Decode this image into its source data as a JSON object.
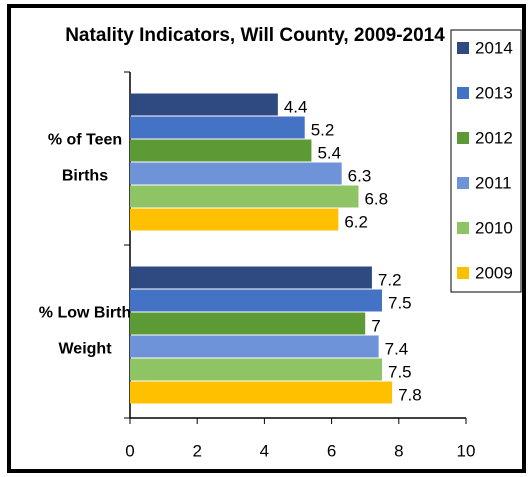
{
  "chart_data": {
    "type": "barh",
    "title": "Natality Indicators, Will County, 2009-2014",
    "categories": [
      "% of Teen Births",
      "% Low Birth Weight"
    ],
    "series": [
      {
        "name": "2014",
        "color": "#2f4a80",
        "values": [
          4.4,
          7.2
        ]
      },
      {
        "name": "2013",
        "color": "#4472c4",
        "values": [
          5.2,
          7.5
        ]
      },
      {
        "name": "2012",
        "color": "#5b9a34",
        "values": [
          5.4,
          7
        ]
      },
      {
        "name": "2011",
        "color": "#6f93d8",
        "values": [
          6.3,
          7.4
        ]
      },
      {
        "name": "2010",
        "color": "#8fc465",
        "values": [
          6.8,
          7.5
        ]
      },
      {
        "name": "2009",
        "color": "#ffc000",
        "values": [
          6.2,
          7.8
        ]
      }
    ],
    "xlim": [
      0,
      10
    ],
    "xticks": [
      0,
      2,
      4,
      6,
      8,
      10
    ],
    "legend": "right"
  }
}
